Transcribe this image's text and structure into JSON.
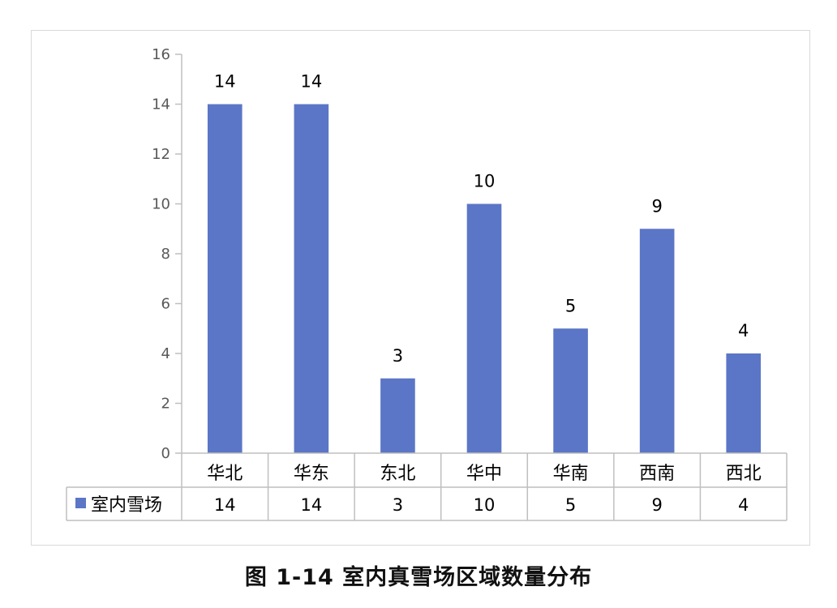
{
  "chart_data": {
    "type": "bar",
    "categories": [
      "华北",
      "华东",
      "东北",
      "华中",
      "华南",
      "西南",
      "西北"
    ],
    "series": [
      {
        "name": "室内雪场",
        "values": [
          14,
          14,
          3,
          10,
          5,
          9,
          4
        ],
        "color": "#5b76c6"
      }
    ],
    "ylim": [
      0,
      16
    ],
    "yticks": [
      0,
      2,
      4,
      6,
      8,
      10,
      12,
      14,
      16
    ],
    "data_labels": true,
    "data_table": true,
    "grid": false,
    "legend": "data-table"
  },
  "caption": "图 1-14 室内真雪场区域数量分布"
}
